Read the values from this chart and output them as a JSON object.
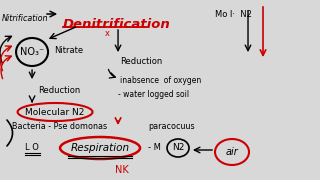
{
  "bg_color": "#d8d8d8",
  "title": "Denitrification",
  "title_color": "#cc0000",
  "mol_n2": "Mo l·  N2",
  "nitrification": "Nitrification",
  "nitrate": "Nitrate",
  "reduction_left": "Reduction",
  "reduction_right": "Reduction",
  "inabsence": "inabsence  of oxygen",
  "waterlogged": "- water logged soil",
  "bacteria": "Bacteria - Pse domonas",
  "paracocuus": "paracocuus",
  "lo": "L O",
  "respiration": "Respiration",
  "dash_m": "- M",
  "nk": "NK",
  "air_text": "air",
  "n2_text": "N2",
  "mol_n2_circ": "Molecular N2"
}
